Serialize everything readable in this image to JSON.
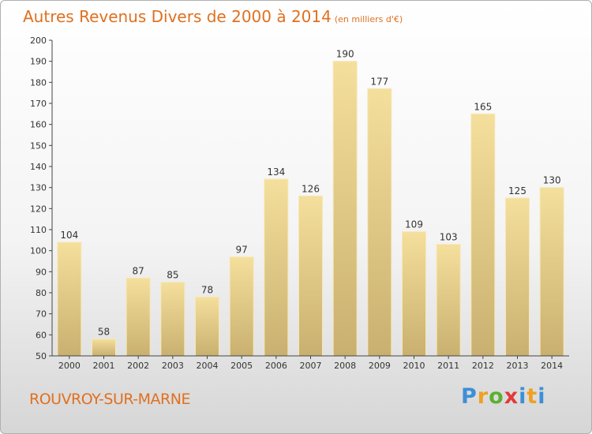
{
  "chart_data": {
    "type": "bar",
    "title": "Autres Revenus Divers de 2000 à 2014",
    "unit": "(en milliers d'€)",
    "categories": [
      "2000",
      "2001",
      "2002",
      "2003",
      "2004",
      "2005",
      "2006",
      "2007",
      "2008",
      "2009",
      "2010",
      "2011",
      "2012",
      "2013",
      "2014"
    ],
    "values": [
      104,
      58,
      87,
      85,
      78,
      97,
      134,
      126,
      190,
      177,
      109,
      103,
      165,
      125,
      130
    ],
    "ylim": [
      50,
      200
    ],
    "yticks": [
      50,
      60,
      70,
      80,
      90,
      100,
      110,
      120,
      130,
      140,
      150,
      160,
      170,
      180,
      190,
      200
    ],
    "grid": false,
    "colors": {
      "bar_light": "#f5df9c",
      "bar_dark": "#c9b070",
      "axis": "#444444"
    }
  },
  "footer": {
    "commune": "ROUVROY-SUR-MARNE",
    "logo": "Proxiti"
  },
  "colors": {
    "accent": "#e07020"
  }
}
